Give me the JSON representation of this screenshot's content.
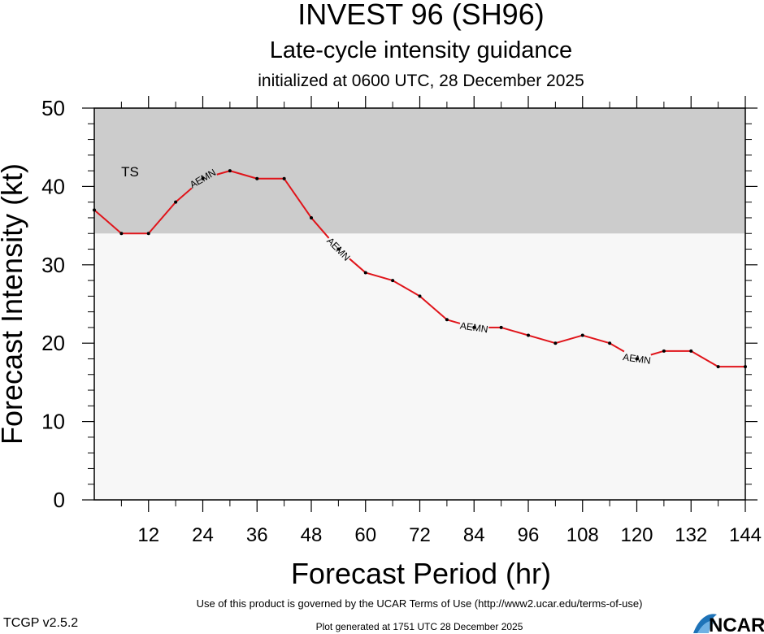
{
  "header": {
    "title": "INVEST 96 (SH96)",
    "subtitle": "Late-cycle intensity guidance",
    "init_line": "initialized at 0600 UTC, 28 December 2025"
  },
  "footer": {
    "terms": "Use of this product is governed by the UCAR Terms of Use (http://www2.ucar.edu/terms-of-use)",
    "version": "TCGP v2.5.2",
    "generated": "Plot generated at 1751 UTC   28 December 2025",
    "logo_text": "NCAR"
  },
  "colors": {
    "upper_band": "#cccccc",
    "lower_band": "#f7f7f7",
    "line": "#e0141a",
    "ts_label": "#ffffff"
  },
  "chart_data": {
    "type": "line",
    "xlabel": "Forecast Period (hr)",
    "ylabel": "Forecast Intensity (kt)",
    "xlim": [
      0,
      144
    ],
    "ylim": [
      0,
      50
    ],
    "xticks": [
      12,
      24,
      36,
      48,
      60,
      72,
      84,
      96,
      108,
      120,
      132,
      144
    ],
    "yticks": [
      0,
      10,
      20,
      30,
      40,
      50
    ],
    "bands": [
      {
        "from": 34,
        "to": 50,
        "label": "TS"
      }
    ],
    "series": [
      {
        "name": "AEMN",
        "x": [
          0,
          6,
          12,
          18,
          24,
          30,
          36,
          42,
          48,
          54,
          60,
          66,
          72,
          78,
          84,
          90,
          96,
          102,
          108,
          114,
          120,
          126,
          132,
          138,
          144
        ],
        "y": [
          37,
          34,
          34,
          38,
          41,
          42,
          41,
          41,
          36,
          32,
          29,
          28,
          26,
          23,
          22,
          22,
          21,
          20,
          21,
          20,
          18,
          19,
          19,
          17,
          17
        ],
        "label_hours": [
          24,
          54,
          84,
          120
        ]
      }
    ]
  }
}
